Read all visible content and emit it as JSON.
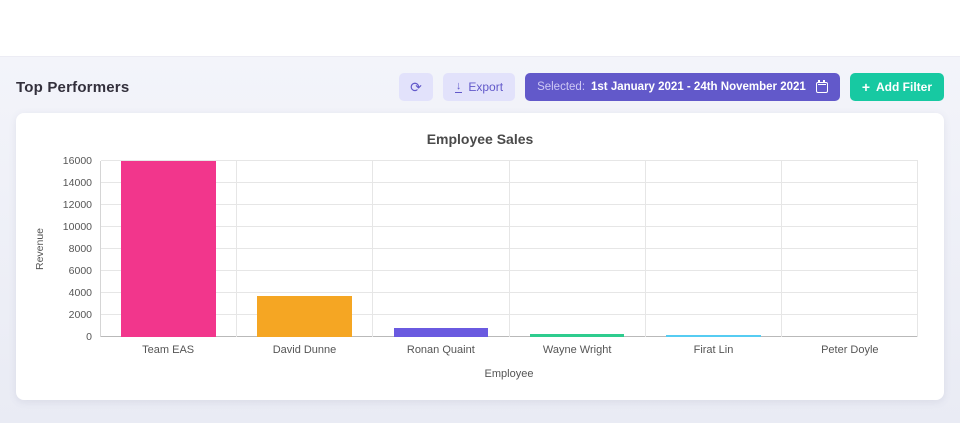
{
  "page": {
    "title": "Top Performers"
  },
  "toolbar": {
    "export_label": "Export",
    "date_filter": {
      "prefix": "Selected:",
      "range": "1st January 2021 - 24th November 2021"
    },
    "add_filter_label": "Add Filter"
  },
  "icons": {
    "refresh": "⟳",
    "download": "↓",
    "plus": "+"
  },
  "colors": {
    "accent_indigo": "#6259ca",
    "accent_teal": "#17c9a2",
    "btn_light_bg": "#e2e2fb"
  },
  "chart_data": {
    "type": "bar",
    "title": "Employee Sales",
    "xlabel": "Employee",
    "ylabel": "Revenue",
    "categories": [
      "Team  EAS",
      "David Dunne",
      "Ronan Quaint",
      "Wayne  Wright",
      "Firat Lin",
      "Peter Doyle"
    ],
    "values": [
      16000,
      3700,
      850,
      250,
      150,
      0
    ],
    "bar_colors": [
      "#f2368c",
      "#f5a623",
      "#6a5ae0",
      "#2ecc8e",
      "#56ccf2",
      "#9b9b9b"
    ],
    "ylim": [
      0,
      16000
    ],
    "ytick_step": 2000,
    "grid": true,
    "legend": false
  }
}
